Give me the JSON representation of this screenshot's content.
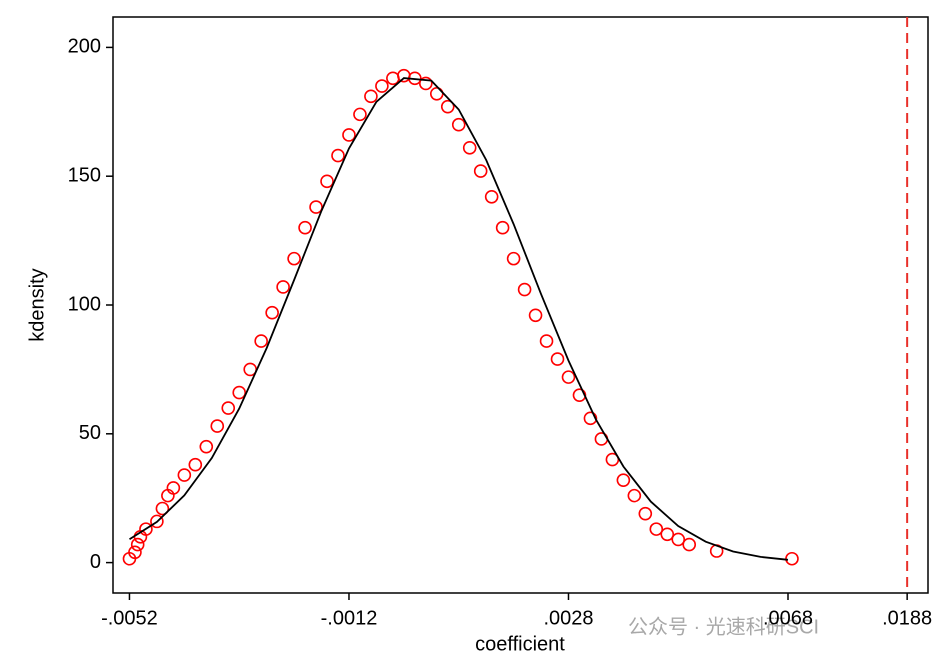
{
  "chart_data": {
    "type": "scatter",
    "xlabel": "coefficient",
    "ylabel": "kdensity",
    "xlim": [
      -0.0055,
      0.0209
    ],
    "ylim": [
      -11.8,
      211.8
    ],
    "xticks": [
      {
        "value": -0.0052,
        "label": "-.0052"
      },
      {
        "value": -0.0012,
        "label": "-.0012"
      },
      {
        "value": 0.0028,
        "label": ".0028"
      },
      {
        "value": 0.0068,
        "label": ".0068"
      },
      {
        "value": 0.0188,
        "label": ".0188"
      }
    ],
    "yticks": [
      0,
      50,
      100,
      150,
      200
    ],
    "series": [
      {
        "type": "scatter",
        "color": "#ff0000",
        "x": [
          -0.0052,
          -0.0051,
          -0.00505,
          -0.005,
          -0.0049,
          -0.0047,
          -0.0046,
          -0.0045,
          -0.0044,
          -0.0042,
          -0.004,
          -0.0038,
          -0.0036,
          -0.0034,
          -0.0032,
          -0.003,
          -0.0028,
          -0.0026,
          -0.0024,
          -0.0022,
          -0.002,
          -0.0018,
          -0.0016,
          -0.0014,
          -0.0012,
          -0.001,
          -0.0008,
          -0.0006,
          -0.0004,
          -0.0002,
          0,
          0.0002,
          0.0004,
          0.0006,
          0.0008,
          0.001,
          0.0012,
          0.0014,
          0.0016,
          0.0018,
          0.002,
          0.0022,
          0.0024,
          0.0026,
          0.0028,
          0.003,
          0.0032,
          0.0034,
          0.0036,
          0.0038,
          0.004,
          0.0042,
          0.0044,
          0.0046,
          0.0048,
          0.005,
          0.0055,
          0.0072
        ],
        "values": [
          1.5,
          4,
          7,
          10,
          13,
          16,
          21,
          26,
          29,
          34,
          38,
          45,
          53,
          60,
          66,
          75,
          86,
          97,
          107,
          118,
          130,
          138,
          148,
          158,
          166,
          174,
          181,
          185,
          188,
          189,
          188,
          186,
          182,
          177,
          170,
          161,
          152,
          142,
          130,
          118,
          106,
          96,
          86,
          79,
          72,
          65,
          56,
          48,
          40,
          32,
          26,
          19,
          13,
          11,
          9,
          7,
          4.5,
          1.5
        ]
      },
      {
        "type": "line",
        "color": "#000000",
        "x": [
          -0.0052,
          -0.0047,
          -0.0042,
          -0.0037,
          -0.0032,
          -0.0027,
          -0.0022,
          -0.0017,
          -0.0012,
          -0.0007,
          -0.0002,
          0.0003,
          0.0008,
          0.0013,
          0.0018,
          0.0023,
          0.0028,
          0.0033,
          0.0038,
          0.0043,
          0.0048,
          0.0053,
          0.0058,
          0.0063,
          0.0068
        ],
        "values": [
          9.1,
          15.8,
          26.1,
          40.6,
          59.8,
          83.3,
          109.7,
          136.6,
          160.8,
          178.9,
          188.1,
          187.1,
          175.9,
          156.3,
          131.4,
          104.3,
          78.4,
          55.6,
          37.3,
          23.7,
          14.2,
          8.1,
          4.3,
          2.2,
          1.1
        ]
      }
    ],
    "xline": {
      "value": 0.0188,
      "color": "#e8302a",
      "dashed": true
    },
    "watermark": "公众号 · 光速科研SCI"
  }
}
